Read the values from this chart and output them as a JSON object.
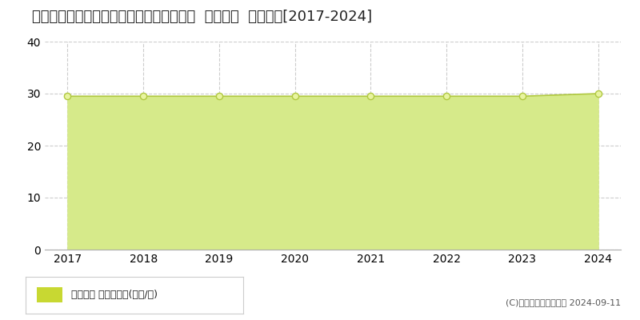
{
  "title": "新潟県新潟市西区小针４丁目７Ｓ０番５外  地価公示  地価推移[2017-2024]",
  "years": [
    2017,
    2018,
    2019,
    2020,
    2021,
    2022,
    2023,
    2024
  ],
  "values": [
    29.5,
    29.5,
    29.5,
    29.5,
    29.5,
    29.5,
    29.5,
    30.0
  ],
  "ylim": [
    0,
    40
  ],
  "yticks": [
    0,
    10,
    20,
    30,
    40
  ],
  "fill_color": "#d6ea8a",
  "fill_alpha": 1.0,
  "line_color": "#b0c840",
  "marker_edge_color": "#b0c840",
  "marker_face_color": "#e8f4a0",
  "bg_color": "#ffffff",
  "grid_color": "#cccccc",
  "legend_label": "地価公示 平均坤単価(万円/坤)",
  "legend_marker_color": "#c8d832",
  "copyright_text": "(C)土地価格ドットコム 2024-09-11",
  "title_fontsize": 13,
  "axis_fontsize": 10,
  "legend_fontsize": 9,
  "copyright_fontsize": 8
}
